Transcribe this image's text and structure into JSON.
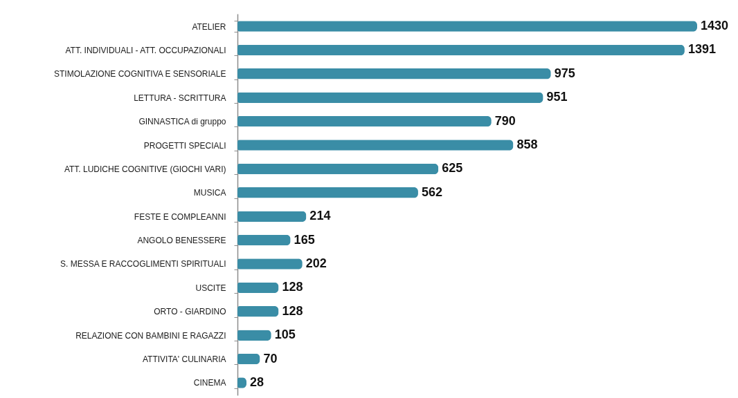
{
  "chart_data": {
    "type": "bar",
    "orientation": "horizontal",
    "categories": [
      "ATELIER",
      "ATT. INDIVIDUALI - ATT. OCCUPAZIONALI",
      "STIMOLAZIONE COGNITIVA E SENSORIALE",
      "LETTURA - SCRITTURA",
      "GINNASTICA di gruppo",
      "PROGETTI SPECIALI",
      "ATT. LUDICHE COGNITIVE (GIOCHI VARI)",
      "MUSICA",
      "FESTE E COMPLEANNI",
      "ANGOLO BENESSERE",
      "S. MESSA E RACCOGLIMENTI SPIRITUALI",
      "USCITE",
      "ORTO - GIARDINO",
      "RELAZIONE CON BAMBINI E RAGAZZI",
      "ATTIVITA' CULINARIA",
      "CINEMA"
    ],
    "values": [
      1430,
      1391,
      975,
      951,
      790,
      858,
      625,
      562,
      214,
      165,
      202,
      128,
      128,
      105,
      70,
      28
    ],
    "color": "#3a8da6",
    "data_labels": true,
    "tick_labels": "y"
  }
}
